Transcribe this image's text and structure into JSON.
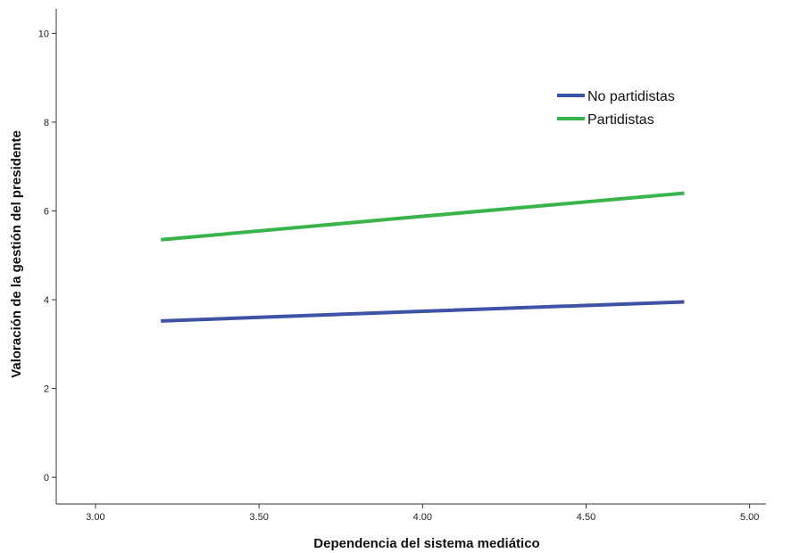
{
  "chart_data": {
    "type": "line",
    "title": "",
    "xlabel": "Dependencia del sistema mediático",
    "ylabel": "Valoración de la gestión del presidente",
    "xlim": [
      2.88,
      5.05
    ],
    "ylim": [
      -0.6,
      10.55
    ],
    "x_ticks": [
      {
        "value": 3.0,
        "label": "3.00"
      },
      {
        "value": 3.5,
        "label": "3.50"
      },
      {
        "value": 4.0,
        "label": "4.00"
      },
      {
        "value": 4.5,
        "label": "4.50"
      },
      {
        "value": 5.0,
        "label": "5.00"
      }
    ],
    "y_ticks": [
      {
        "value": 0,
        "label": "0"
      },
      {
        "value": 2,
        "label": "2"
      },
      {
        "value": 4,
        "label": "4"
      },
      {
        "value": 6,
        "label": "6"
      },
      {
        "value": 8,
        "label": "8"
      },
      {
        "value": 10,
        "label": "10"
      }
    ],
    "grid": false,
    "legend_position": "top-right",
    "series": [
      {
        "name": "No partidistas",
        "color": "#3e53a7",
        "x": [
          3.2,
          4.0,
          4.8
        ],
        "y": [
          3.52,
          3.74,
          3.95
        ]
      },
      {
        "name": "Partidistas",
        "color": "#38b44a",
        "x": [
          3.2,
          4.0,
          4.8
        ],
        "y": [
          5.35,
          5.88,
          6.4
        ]
      }
    ]
  }
}
